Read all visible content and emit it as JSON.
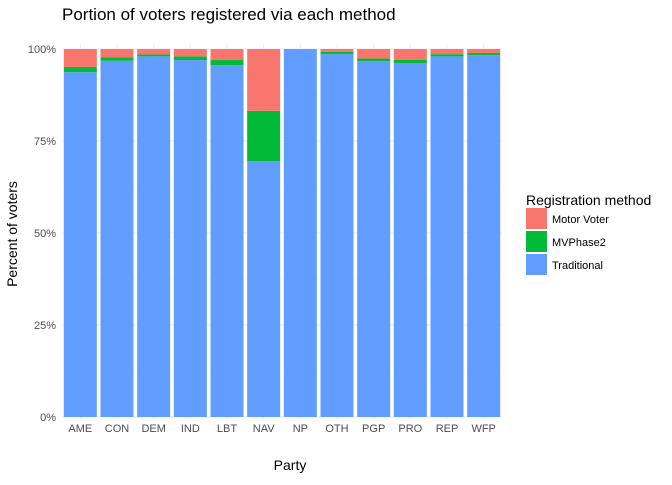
{
  "chart_data": {
    "type": "bar",
    "stacked": true,
    "title": "Portion of voters registered via each method",
    "xlabel": "Party",
    "ylabel": "Percent of voters",
    "ylim": [
      0,
      1
    ],
    "y_ticks": [
      {
        "value": 0,
        "label": "0%"
      },
      {
        "value": 0.25,
        "label": "25%"
      },
      {
        "value": 0.5,
        "label": "50%"
      },
      {
        "value": 0.75,
        "label": "75%"
      },
      {
        "value": 1,
        "label": "100%"
      }
    ],
    "grid": true,
    "legend_position": "right",
    "legend_title": "Registration method",
    "categories": [
      "AME",
      "CON",
      "DEM",
      "IND",
      "LBT",
      "NAV",
      "NP",
      "OTH",
      "PGP",
      "PRO",
      "REP",
      "WFP"
    ],
    "series": [
      {
        "name": "Traditional",
        "color": "#619CFF",
        "values": [
          0.937,
          0.968,
          0.98,
          0.97,
          0.956,
          0.695,
          1.0,
          0.986,
          0.967,
          0.962,
          0.98,
          0.983
        ]
      },
      {
        "name": "MVPhase2",
        "color": "#00BA38",
        "values": [
          0.014,
          0.009,
          0.005,
          0.01,
          0.014,
          0.137,
          0.0,
          0.006,
          0.007,
          0.009,
          0.006,
          0.006
        ]
      },
      {
        "name": "Motor Voter",
        "color": "#F8766D",
        "values": [
          0.049,
          0.023,
          0.015,
          0.02,
          0.03,
          0.168,
          0.0,
          0.008,
          0.026,
          0.029,
          0.014,
          0.011
        ]
      }
    ],
    "legend_order": [
      "Motor Voter",
      "MVPhase2",
      "Traditional"
    ]
  }
}
